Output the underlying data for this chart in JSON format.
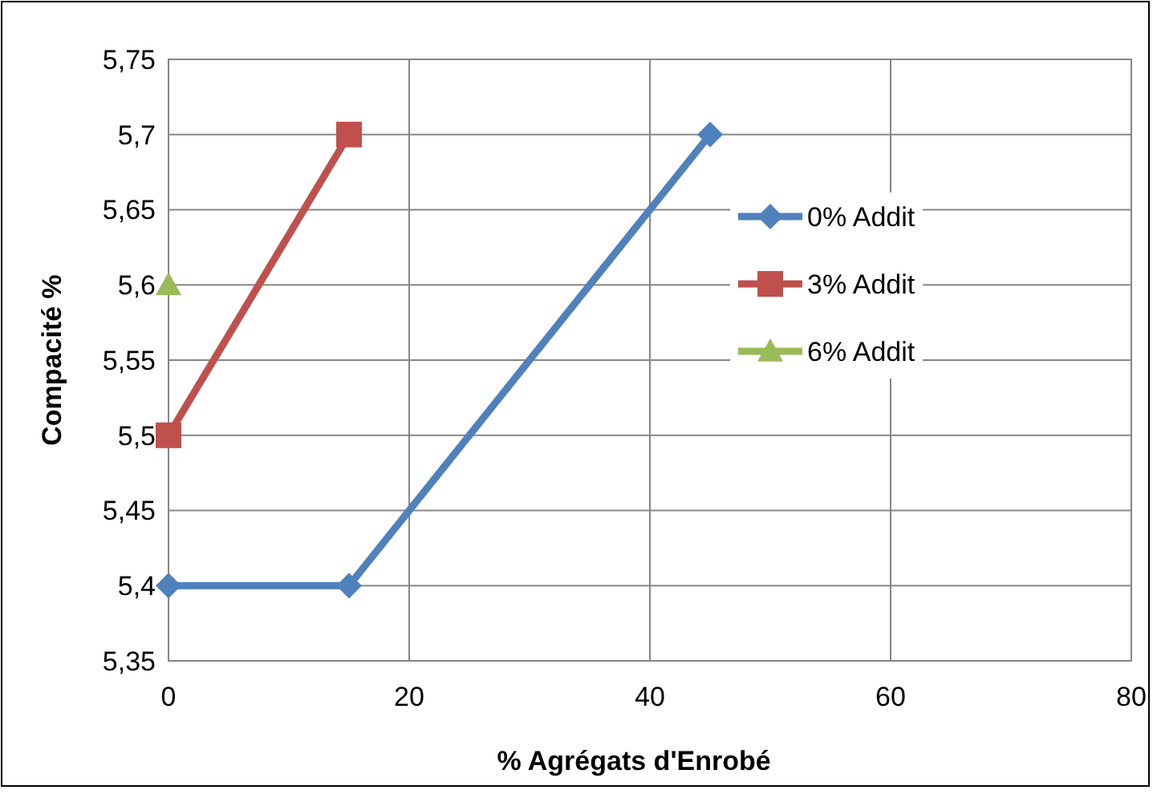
{
  "chart_data": {
    "type": "line",
    "xlabel": "% Agrégats d'Enrobé",
    "ylabel": "Compacité %",
    "xlim": [
      0,
      80
    ],
    "xticks": [
      0,
      20,
      40,
      60,
      80
    ],
    "ylim": [
      5.35,
      5.75
    ],
    "yticks": [
      {
        "value": 5.35,
        "label": "5,35"
      },
      {
        "value": 5.4,
        "label": "5,4"
      },
      {
        "value": 5.45,
        "label": "5,45"
      },
      {
        "value": 5.5,
        "label": "5,5"
      },
      {
        "value": 5.55,
        "label": "5,55"
      },
      {
        "value": 5.6,
        "label": "5,6"
      },
      {
        "value": 5.65,
        "label": "5,65"
      },
      {
        "value": 5.7,
        "label": "5,7"
      },
      {
        "value": 5.75,
        "label": "5,75"
      }
    ],
    "grid": true,
    "legend": "right",
    "line_style": "solid",
    "series": [
      {
        "name": "0% Addit",
        "color": "#4f81bd",
        "marker": "diamond",
        "x": [
          0,
          15,
          45
        ],
        "values": [
          5.4,
          5.4,
          5.7
        ]
      },
      {
        "name": "3% Addit",
        "color": "#c0504d",
        "marker": "square",
        "x": [
          0,
          15
        ],
        "values": [
          5.5,
          5.7
        ]
      },
      {
        "name": "6% Addit",
        "color": "#9bbb59",
        "marker": "triangle",
        "x": [
          0
        ],
        "values": [
          5.6
        ]
      }
    ]
  }
}
